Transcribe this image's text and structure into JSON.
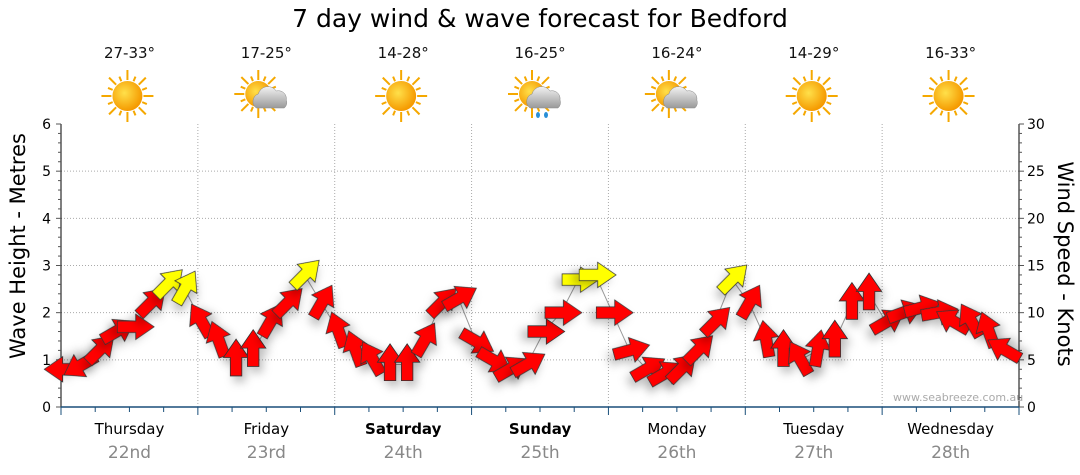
{
  "title": "7 day wind & wave forecast for Bedford",
  "watermark": "www.seabreeze.com.au",
  "days": [
    {
      "name": "Thursday",
      "date": "22nd",
      "temp": "27-33°",
      "icon": "sunny-icon",
      "bold": false
    },
    {
      "name": "Friday",
      "date": "23rd",
      "temp": "17-25°",
      "icon": "partly-cloudy-icon",
      "bold": false
    },
    {
      "name": "Saturday",
      "date": "24th",
      "temp": "14-28°",
      "icon": "sunny-icon",
      "bold": true
    },
    {
      "name": "Sunday",
      "date": "25th",
      "temp": "16-25°",
      "icon": "showers-icon",
      "bold": true
    },
    {
      "name": "Monday",
      "date": "26th",
      "temp": "16-24°",
      "icon": "partly-cloudy-icon",
      "bold": false
    },
    {
      "name": "Tuesday",
      "date": "27th",
      "temp": "14-29°",
      "icon": "sunny-icon",
      "bold": false
    },
    {
      "name": "Wednesday",
      "date": "28th",
      "temp": "16-33°",
      "icon": "sunny-icon",
      "bold": false
    }
  ],
  "chart_data": {
    "type": "scatter",
    "title": "7 day wind & wave forecast for Bedford",
    "ylabel": "Wave Height - Metres",
    "y2label": "Wind Speed - Knots",
    "ylim": [
      0,
      6
    ],
    "y2lim": [
      0,
      30
    ],
    "yticks": [
      "0",
      "1",
      "2",
      "3",
      "4",
      "5",
      "6"
    ],
    "y2ticks": [
      "0",
      "5",
      "10",
      "15",
      "20",
      "25",
      "30"
    ],
    "grid": true,
    "colors": {
      "normal": "#ff0000",
      "strong": "#ffff00",
      "outline": "#333333",
      "axis": "#1a4f7a"
    },
    "strong_threshold_knots": 12.5,
    "wind_knots": [
      4,
      4.5,
      6,
      8,
      8.5,
      11,
      13,
      12.5,
      9,
      7,
      5,
      6,
      9,
      11,
      14,
      11,
      8,
      6,
      5,
      4.5,
      4.5,
      7,
      11,
      11.5,
      7,
      5,
      4,
      4.5,
      8,
      10,
      13.5,
      14,
      10,
      6,
      4,
      3.5,
      4,
      6,
      9,
      13.5,
      11,
      7,
      6,
      5,
      6,
      7,
      11,
      12,
      9,
      10,
      10.5,
      10,
      9,
      9,
      8,
      6
    ],
    "wind_direction_deg": [
      270,
      240,
      45,
      60,
      90,
      45,
      45,
      30,
      330,
      340,
      0,
      0,
      30,
      45,
      45,
      30,
      340,
      340,
      330,
      0,
      0,
      30,
      45,
      60,
      120,
      120,
      60,
      60,
      90,
      90,
      90,
      90,
      90,
      75,
      60,
      60,
      45,
      45,
      45,
      45,
      30,
      350,
      0,
      330,
      10,
      0,
      0,
      0,
      60,
      70,
      75,
      80,
      300,
      330,
      340,
      300
    ]
  }
}
